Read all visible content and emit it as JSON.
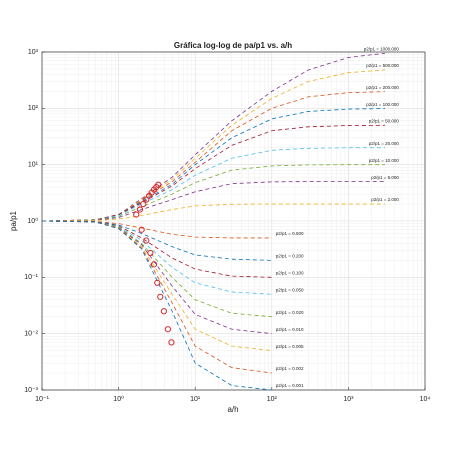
{
  "chart_data": {
    "type": "line",
    "title": "Gráfica log-log de pa/p1 vs. a/h",
    "xlabel": "a/h",
    "ylabel": "pa/p1",
    "log_x": true,
    "log_y": true,
    "grid": true,
    "minor_grid": true,
    "xlim": [
      0.1,
      10000
    ],
    "xticks": [
      {
        "value": 0.1,
        "label": "10⁻¹"
      },
      {
        "value": 1,
        "label": "10⁰"
      },
      {
        "value": 10,
        "label": "10¹"
      },
      {
        "value": 100,
        "label": "10²"
      },
      {
        "value": 1000,
        "label": "10³"
      },
      {
        "value": 10000,
        "label": "10⁴"
      }
    ],
    "ylim": [
      0.001,
      1000
    ],
    "yticks": [
      {
        "value": 0.001,
        "label": "10⁻³"
      },
      {
        "value": 0.01,
        "label": "10⁻²"
      },
      {
        "value": 0.1,
        "label": "10⁻¹"
      },
      {
        "value": 1,
        "label": "10⁰"
      },
      {
        "value": 10,
        "label": "10¹"
      },
      {
        "value": 100,
        "label": "10²"
      },
      {
        "value": 1000,
        "label": "10³"
      }
    ],
    "x": [
      0.1,
      0.5,
      1,
      2,
      5,
      10,
      30,
      100,
      300,
      1000,
      3000
    ],
    "series": [
      {
        "name": "p2/p1 = 1000.000",
        "color": "#7e2f8e",
        "values": [
          1,
          1.05,
          1.3,
          2.5,
          6,
          15,
          60,
          200,
          480,
          800,
          950
        ]
      },
      {
        "name": "p2/p1 = 500.000",
        "color": "#edb120",
        "values": [
          1,
          1.05,
          1.3,
          2.4,
          5.5,
          13,
          50,
          150,
          300,
          430,
          480
        ]
      },
      {
        "name": "p2/p1 = 200.000",
        "color": "#d95319",
        "values": [
          1,
          1.05,
          1.3,
          2.3,
          5,
          11,
          40,
          100,
          160,
          190,
          198
        ]
      },
      {
        "name": "p2/p1 = 100.000",
        "color": "#0072bd",
        "values": [
          1,
          1.05,
          1.3,
          2.2,
          4.5,
          10,
          30,
          65,
          88,
          97,
          99
        ]
      },
      {
        "name": "p2/p1 = 50.000",
        "color": "#a2142f",
        "values": [
          1,
          1.05,
          1.3,
          2.1,
          4.2,
          8.5,
          22,
          40,
          47,
          49.5,
          50
        ]
      },
      {
        "name": "p2/p1 = 20.000",
        "color": "#4dbeee",
        "values": [
          1,
          1.04,
          1.25,
          2,
          3.6,
          6.5,
          13,
          18,
          19.5,
          20,
          20
        ]
      },
      {
        "name": "p2/p1 = 10.000",
        "color": "#77ac30",
        "values": [
          1,
          1.04,
          1.2,
          1.8,
          3,
          4.8,
          8,
          9.5,
          9.9,
          10,
          10
        ]
      },
      {
        "name": "p2/p1 = 5.000",
        "color": "#7e2f8e",
        "values": [
          1,
          1.03,
          1.15,
          1.6,
          2.4,
          3.3,
          4.6,
          4.95,
          5,
          5,
          5
        ]
      },
      {
        "name": "p2/p1 = 2.000",
        "color": "#edb120",
        "values": [
          1,
          1.02,
          1.08,
          1.25,
          1.6,
          1.85,
          1.98,
          2,
          2,
          2,
          2
        ]
      },
      {
        "name": "p2/p1 = 0.500",
        "color": "#d95319",
        "values": [
          1,
          0.98,
          0.9,
          0.75,
          0.58,
          0.52,
          0.5,
          0.5,
          null,
          null,
          null
        ]
      },
      {
        "name": "p2/p1 = 0.200",
        "color": "#0072bd",
        "values": [
          1,
          0.97,
          0.85,
          0.6,
          0.35,
          0.25,
          0.21,
          0.2,
          null,
          null,
          null
        ]
      },
      {
        "name": "p2/p1 = 0.100",
        "color": "#a2142f",
        "values": [
          1,
          0.97,
          0.82,
          0.5,
          0.22,
          0.14,
          0.105,
          0.1,
          null,
          null,
          null
        ]
      },
      {
        "name": "p2/p1 = 0.050",
        "color": "#4dbeee",
        "values": [
          1,
          0.96,
          0.8,
          0.45,
          0.15,
          0.08,
          0.055,
          0.05,
          null,
          null,
          null
        ]
      },
      {
        "name": "p2/p1 = 0.020",
        "color": "#77ac30",
        "values": [
          1,
          0.96,
          0.78,
          0.4,
          0.1,
          0.04,
          0.023,
          0.02,
          null,
          null,
          null
        ]
      },
      {
        "name": "p2/p1 = 0.010",
        "color": "#7e2f8e",
        "values": [
          1,
          0.96,
          0.76,
          0.38,
          0.07,
          0.022,
          0.012,
          0.01,
          null,
          null,
          null
        ]
      },
      {
        "name": "p2/p1 = 0.005",
        "color": "#edb120",
        "values": [
          1,
          0.96,
          0.75,
          0.35,
          0.05,
          0.012,
          0.006,
          0.005,
          null,
          null,
          null
        ]
      },
      {
        "name": "p2/p1 = 0.002",
        "color": "#d95319",
        "values": [
          1,
          0.96,
          0.74,
          0.33,
          0.035,
          0.006,
          0.0025,
          0.002,
          null,
          null,
          null
        ]
      },
      {
        "name": "p2/p1 = 0.001",
        "color": "#0072bd",
        "values": [
          1,
          0.96,
          0.73,
          0.32,
          0.025,
          0.003,
          0.0012,
          0.001,
          null,
          null,
          null
        ]
      }
    ],
    "markers": {
      "color": "#d62728",
      "x": [
        1.7,
        1.9,
        2.1,
        2.3,
        2.5,
        2.7,
        2.9,
        3.1,
        3.3,
        2.0,
        2.3,
        2.6,
        2.9,
        3.2,
        3.5,
        3.9,
        4.4,
        4.9
      ],
      "y": [
        1.3,
        1.6,
        2.0,
        2.4,
        2.8,
        3.2,
        3.6,
        4.0,
        4.4,
        0.7,
        0.45,
        0.27,
        0.17,
        0.08,
        0.045,
        0.025,
        0.012,
        0.007
      ]
    }
  }
}
